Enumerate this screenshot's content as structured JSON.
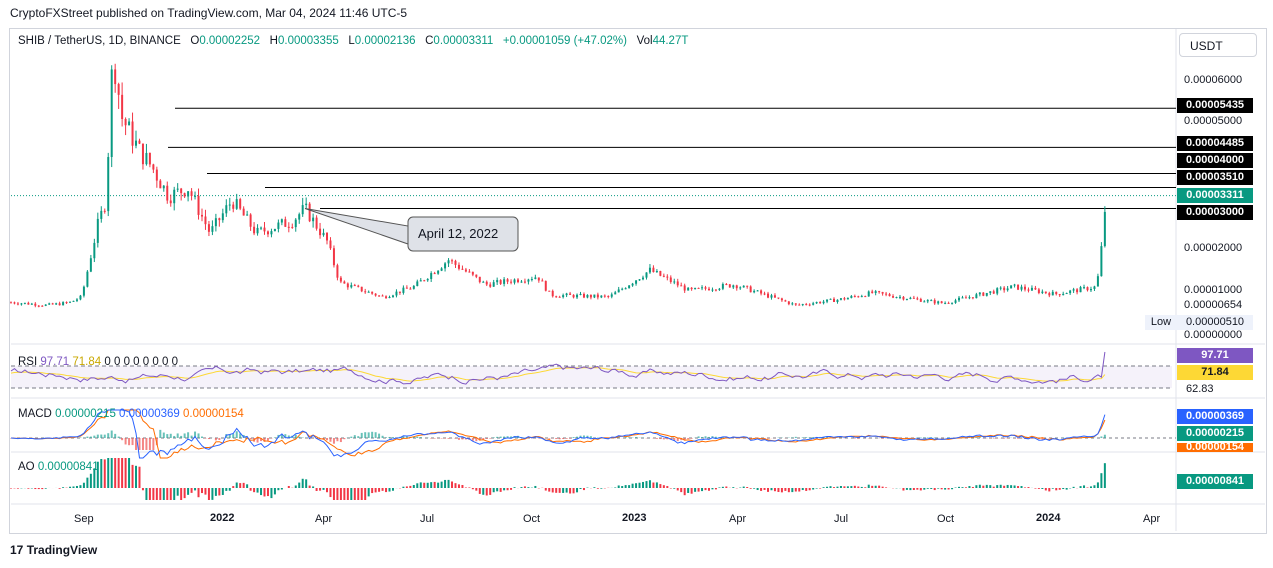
{
  "header": {
    "published": "CryptoFXStreet published on TradingView.com, Mar 04, 2024 11:46 UTC-5"
  },
  "symbol_line": {
    "symbol": "SHIB / TetherUS, 1D, BINANCE",
    "o_label": "O",
    "o_value": "0.00002252",
    "h_label": "H",
    "h_value": "0.00003355",
    "l_label": "L",
    "l_value": "0.00002136",
    "c_label": "C",
    "c_value": "0.00003311",
    "change": "+0.00001059 (+47.02%)",
    "vol_label": "Vol",
    "vol_value": "44.27T"
  },
  "currency_button": "USDT",
  "footer_logo": "TradingView",
  "colors": {
    "up": "#089981",
    "down": "#f23645",
    "rsi": "#7e57c2",
    "rsi_ma": "#fdd835",
    "macd": "#2962ff",
    "signal": "#ff6d00",
    "level": "#000000",
    "last_price": "#089981"
  },
  "chart_data": [
    {
      "type": "candlestick",
      "title": "SHIB / TetherUS, 1D, BINANCE",
      "y_scale": "linear",
      "ylim": [
        0,
        6.8e-05
      ],
      "x_ticks": [
        "Sep",
        "2022",
        "Apr",
        "Jul",
        "Oct",
        "2023",
        "Apr",
        "Jul",
        "Oct",
        "2024",
        "Apr"
      ],
      "y_ticks": [
        "0.00006000",
        "0.00005000",
        "0.00004000",
        "0.00002000",
        "0.00001000",
        "0.00000654",
        "0.00000000"
      ],
      "series": [
        {
          "name": "price_path",
          "points": [
            [
              "2021-08-01",
              7.2e-06
            ],
            [
              "2021-08-20",
              6.8e-06
            ],
            [
              "2021-09-01",
              6.5e-06
            ],
            [
              "2021-09-20",
              7.1e-06
            ],
            [
              "2021-10-01",
              8.5e-06
            ],
            [
              "2021-10-15",
              2.6e-05
            ],
            [
              "2021-10-22",
              3.2e-05
            ],
            [
              "2021-10-28",
              6.8e-05
            ],
            [
              "2021-11-05",
              5.2e-05
            ],
            [
              "2021-11-20",
              4.4e-05
            ],
            [
              "2021-12-01",
              4e-05
            ],
            [
              "2021-12-15",
              3.3e-05
            ],
            [
              "2022-01-01",
              3.5e-05
            ],
            [
              "2022-01-20",
              2.4e-05
            ],
            [
              "2022-02-08",
              3.2e-05
            ],
            [
              "2022-03-01",
              2.4e-05
            ],
            [
              "2022-04-01",
              2.7e-05
            ],
            [
              "2022-04-12",
              3e-05
            ],
            [
              "2022-05-01",
              2.2e-05
            ],
            [
              "2022-05-12",
              1.2e-05
            ],
            [
              "2022-06-18",
              8.5e-06
            ],
            [
              "2022-07-15",
              1.1e-05
            ],
            [
              "2022-08-14",
              1.75e-05
            ],
            [
              "2022-09-15",
              1.15e-05
            ],
            [
              "2022-10-30",
              1.35e-05
            ],
            [
              "2022-11-10",
              9e-06
            ],
            [
              "2022-12-31",
              8.5e-06
            ],
            [
              "2023-02-04",
              1.5e-05
            ],
            [
              "2023-03-10",
              1e-05
            ],
            [
              "2023-04-18",
              1.15e-05
            ],
            [
              "2023-06-10",
              6.5e-06
            ],
            [
              "2023-07-20",
              8e-06
            ],
            [
              "2023-08-15",
              9.5e-06
            ],
            [
              "2023-10-15",
              7e-06
            ],
            [
              "2023-11-15",
              9e-06
            ],
            [
              "2023-12-15",
              1.1e-05
            ],
            [
              "2024-01-20",
              9.2e-06
            ],
            [
              "2024-02-25",
              1.1e-05
            ],
            [
              "2024-03-01",
              2.25e-05
            ],
            [
              "2024-03-04",
              3.311e-05
            ]
          ]
        }
      ],
      "horizontal_levels": [
        "0.00005435",
        "0.00004485",
        "0.00003510",
        "0.00003000"
      ],
      "level_values": [
        5.435e-05,
        4.485e-05,
        3.85e-05,
        3.51e-05,
        3e-05
      ],
      "last_price": "0.00003311",
      "low": {
        "label": "Low",
        "value": "0.00000510"
      },
      "annotations": [
        {
          "text": "April 12, 2022",
          "x": "2022-04-12",
          "y": 3e-05
        }
      ]
    },
    {
      "type": "line",
      "title": "RSI",
      "series": [
        {
          "name": "RSI",
          "last": "97.71"
        },
        {
          "name": "RSI-based MA",
          "last": "71.84"
        }
      ],
      "extra_labels": [
        "0",
        "0",
        "0",
        "0",
        "0",
        "0",
        "0",
        "0"
      ],
      "axis_values": [
        "97.71",
        "71.84",
        "62.83"
      ],
      "bands": [
        30,
        70
      ]
    },
    {
      "type": "line",
      "title": "MACD",
      "series": [
        {
          "name": "Histogram",
          "last": "0.00000215"
        },
        {
          "name": "MACD",
          "last": "0.00000369"
        },
        {
          "name": "Signal",
          "last": "0.00000154"
        }
      ]
    },
    {
      "type": "bar",
      "title": "AO",
      "series": [
        {
          "name": "AO",
          "last": "0.00000841"
        }
      ]
    }
  ]
}
